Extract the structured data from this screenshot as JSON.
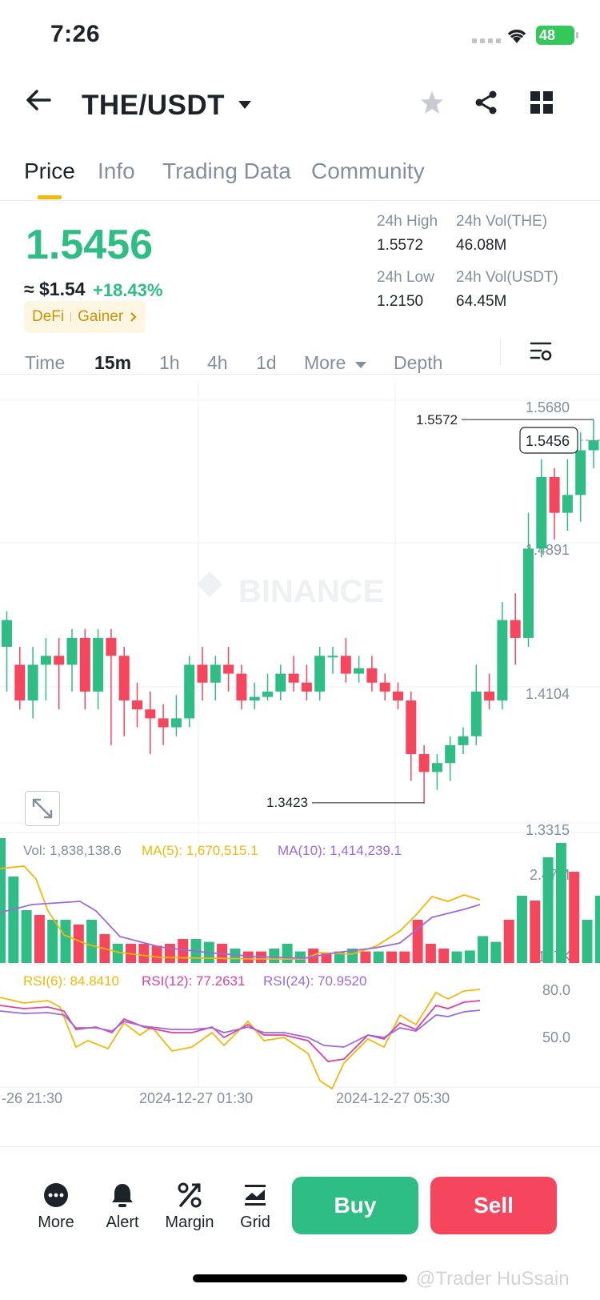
{
  "status_bar": {
    "time": "7:26",
    "battery": "48"
  },
  "header": {
    "pair": "THE/USDT"
  },
  "tabs": [
    {
      "label": "Price",
      "active": true
    },
    {
      "label": "Info",
      "active": false
    },
    {
      "label": "Trading Data",
      "active": false
    },
    {
      "label": "Community",
      "active": false
    }
  ],
  "price": {
    "last": "1.5456",
    "usd": "≈ $1.54",
    "change": "+18.43%",
    "tags": [
      "DeFi",
      "Gainer"
    ]
  },
  "stats": {
    "high_label": "24h High",
    "high": "1.5572",
    "low_label": "24h Low",
    "low": "1.2150",
    "vol_base_label": "24h Vol(THE)",
    "vol_base": "46.08M",
    "vol_quote_label": "24h Vol(USDT)",
    "vol_quote": "64.45M"
  },
  "intervals": [
    "Time",
    "15m",
    "1h",
    "4h",
    "1d",
    "More",
    "Depth"
  ],
  "active_interval": "15m",
  "chart_data": {
    "type": "candlestick",
    "price_axis": [
      "1.5680",
      "1.4891",
      "1.4104",
      "1.3315"
    ],
    "ylim": [
      1.3315,
      1.568
    ],
    "current_price": "1.5456",
    "high_marker": "1.5572",
    "low_marker": "1.3423",
    "watermark": "BINANCE",
    "candles": [
      [
        1.43,
        1.445,
        1.45,
        1.405
      ],
      [
        1.42,
        1.4,
        1.43,
        1.395
      ],
      [
        1.4,
        1.42,
        1.43,
        1.39
      ],
      [
        1.42,
        1.425,
        1.435,
        1.4
      ],
      [
        1.425,
        1.42,
        1.435,
        1.395
      ],
      [
        1.42,
        1.435,
        1.44,
        1.405
      ],
      [
        1.435,
        1.405,
        1.44,
        1.395
      ],
      [
        1.405,
        1.435,
        1.44,
        1.395
      ],
      [
        1.435,
        1.425,
        1.44,
        1.375
      ],
      [
        1.425,
        1.4,
        1.43,
        1.38
      ],
      [
        1.4,
        1.395,
        1.41,
        1.385
      ],
      [
        1.395,
        1.39,
        1.405,
        1.37
      ],
      [
        1.39,
        1.385,
        1.398,
        1.375
      ],
      [
        1.385,
        1.39,
        1.403,
        1.38
      ],
      [
        1.39,
        1.42,
        1.425,
        1.385
      ],
      [
        1.42,
        1.41,
        1.43,
        1.4
      ],
      [
        1.41,
        1.42,
        1.425,
        1.4
      ],
      [
        1.42,
        1.415,
        1.43,
        1.405
      ],
      [
        1.415,
        1.4,
        1.42,
        1.395
      ],
      [
        1.4,
        1.402,
        1.41,
        1.395
      ],
      [
        1.402,
        1.405,
        1.415,
        1.4
      ],
      [
        1.405,
        1.415,
        1.42,
        1.4
      ],
      [
        1.415,
        1.41,
        1.425,
        1.405
      ],
      [
        1.41,
        1.405,
        1.42,
        1.4
      ],
      [
        1.405,
        1.425,
        1.43,
        1.4
      ],
      [
        1.425,
        1.425,
        1.43,
        1.415
      ],
      [
        1.425,
        1.415,
        1.435,
        1.41
      ],
      [
        1.415,
        1.418,
        1.425,
        1.41
      ],
      [
        1.418,
        1.41,
        1.425,
        1.405
      ],
      [
        1.41,
        1.405,
        1.415,
        1.4
      ],
      [
        1.405,
        1.4,
        1.41,
        1.395
      ],
      [
        1.4,
        1.37,
        1.405,
        1.355
      ],
      [
        1.37,
        1.36,
        1.375,
        1.3423
      ],
      [
        1.36,
        1.365,
        1.37,
        1.35
      ],
      [
        1.365,
        1.375,
        1.38,
        1.355
      ],
      [
        1.375,
        1.38,
        1.385,
        1.37
      ],
      [
        1.38,
        1.405,
        1.42,
        1.375
      ],
      [
        1.405,
        1.4,
        1.415,
        1.395
      ],
      [
        1.4,
        1.445,
        1.455,
        1.395
      ],
      [
        1.445,
        1.435,
        1.46,
        1.42
      ],
      [
        1.435,
        1.485,
        1.505,
        1.43
      ],
      [
        1.485,
        1.525,
        1.535,
        1.48
      ],
      [
        1.525,
        1.505,
        1.53,
        1.49
      ],
      [
        1.505,
        1.515,
        1.535,
        1.495
      ],
      [
        1.515,
        1.54,
        1.55,
        1.5
      ],
      [
        1.54,
        1.5456,
        1.5572,
        1.53
      ]
    ],
    "volume": {
      "label": "Vol: 1,838,138.6",
      "ma5_label": "MA(5): 1,670,515.1",
      "ma10_label": "MA(10): 1,414,239.1",
      "axis": [
        "2.47M",
        "147K"
      ]
    },
    "rsi": {
      "rsi6_label": "RSI(6): 84.8410",
      "rsi12_label": "RSI(12): 77.2631",
      "rsi24_label": "RSI(24): 70.9520",
      "axis": [
        "80.0",
        "50.0"
      ]
    },
    "time_axis": [
      "-26 21:30",
      "2024-12-27 01:30",
      "2024-12-27 05:30"
    ]
  },
  "bottom_nav": [
    {
      "label": "More",
      "icon": "more-icon"
    },
    {
      "label": "Alert",
      "icon": "bell-icon"
    },
    {
      "label": "Margin",
      "icon": "margin-icon"
    },
    {
      "label": "Grid",
      "icon": "grid-bot-icon"
    }
  ],
  "actions": {
    "buy": "Buy",
    "sell": "Sell"
  },
  "colors": {
    "up": "#2ebd85",
    "down": "#f6465d",
    "accent": "#f0b90b"
  },
  "watermark_text": "@Trader HuSsain"
}
